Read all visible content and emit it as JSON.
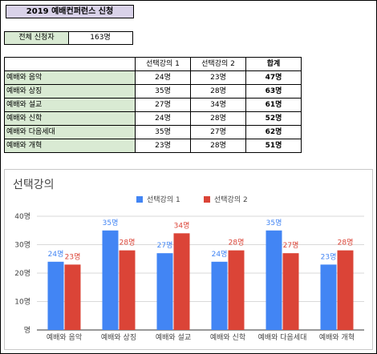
{
  "sheet": {
    "title": "2019 예배컨퍼런스 신청",
    "total_label": "전체 신청자",
    "total_value": "163명"
  },
  "table": {
    "headers": [
      "",
      "선택강의 1",
      "선택강의 2",
      "합계"
    ],
    "rows": [
      {
        "name": "예배와 음악",
        "s1": "24명",
        "s2": "23명",
        "total": "47명"
      },
      {
        "name": "예배와 상징",
        "s1": "35명",
        "s2": "28명",
        "total": "63명"
      },
      {
        "name": "예배와 설교",
        "s1": "27명",
        "s2": "34명",
        "total": "61명"
      },
      {
        "name": "예배와 신학",
        "s1": "24명",
        "s2": "28명",
        "total": "52명"
      },
      {
        "name": "예배와 다음세대",
        "s1": "35명",
        "s2": "27명",
        "total": "62명"
      },
      {
        "name": "예배와 개혁",
        "s1": "23명",
        "s2": "28명",
        "total": "51명"
      }
    ]
  },
  "chart_data": {
    "type": "bar",
    "title": "선택강의",
    "categories": [
      "예배와 음악",
      "예배와 상징",
      "예배와 설교",
      "예배와 신학",
      "예배와 다음세대",
      "예배와 개혁"
    ],
    "series": [
      {
        "name": "선택강의 1",
        "color": "#4285f4",
        "values": [
          24,
          35,
          27,
          24,
          35,
          23
        ],
        "labels": [
          "24명",
          "35명",
          "27명",
          "24명",
          "35명",
          "23명"
        ]
      },
      {
        "name": "선택강의 2",
        "color": "#db4437",
        "values": [
          23,
          28,
          34,
          28,
          27,
          28
        ],
        "labels": [
          "23명",
          "28명",
          "34명",
          "28명",
          "27명",
          "28명"
        ]
      }
    ],
    "ylim": [
      0,
      40
    ],
    "yticks": [
      0,
      10,
      20,
      30,
      40
    ],
    "ytick_labels": [
      "명",
      "10명",
      "20명",
      "30명",
      "40명"
    ],
    "legend_position": "top",
    "grid": true
  }
}
